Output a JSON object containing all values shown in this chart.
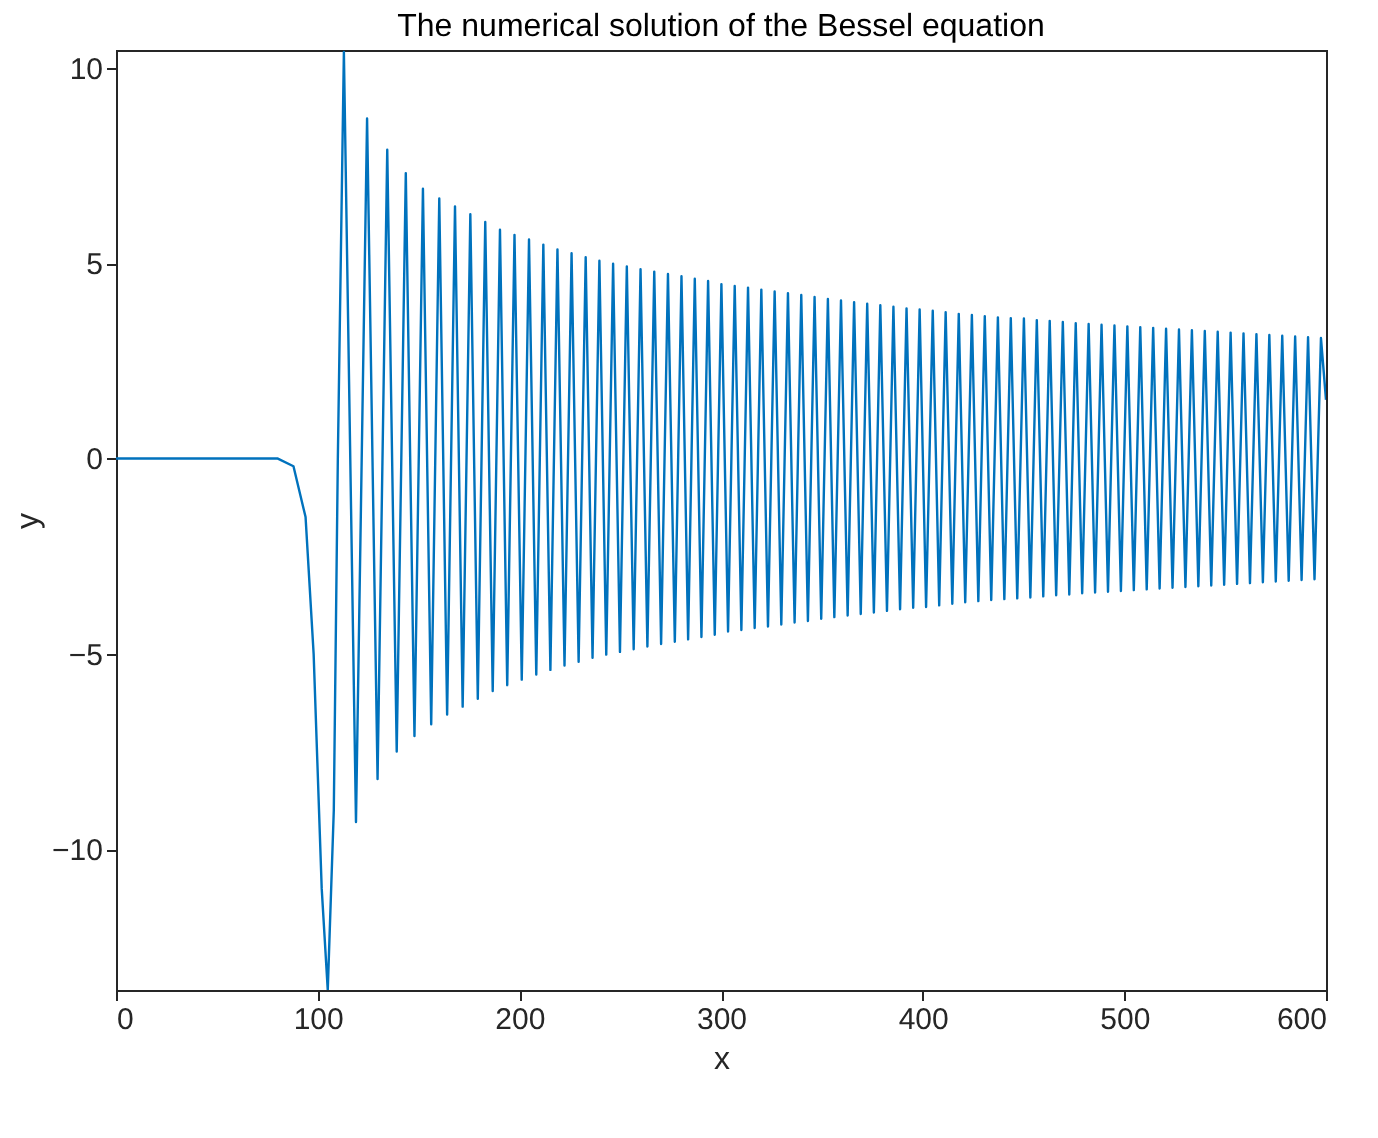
{
  "chart_data": {
    "type": "line",
    "title": "The numerical solution of the Bessel equation",
    "xlabel": "x",
    "ylabel": "y",
    "xlim": [
      0,
      600
    ],
    "ylim": [
      -13.6,
      10.45
    ],
    "xticks": [
      0,
      100,
      200,
      300,
      400,
      500,
      600
    ],
    "yticks": [
      -10,
      -5,
      0,
      5,
      10
    ],
    "grid": false,
    "series": [
      {
        "color": "#0072bd",
        "x": [
          0,
          80,
          88,
          94,
          98,
          102,
          105,
          108,
          110,
          113,
          119,
          124.5,
          129.7,
          134.5,
          139.2,
          143.7,
          148,
          152.2,
          156.3,
          160.3,
          164.2,
          168.1,
          171.9,
          175.7,
          179.4,
          183.1,
          186.8,
          190.4,
          194,
          197.6,
          201.2,
          204.8,
          208.4,
          211.9,
          215.4,
          218.9,
          222.4,
          225.9,
          229.4,
          232.9,
          236.3,
          239.7,
          243.1,
          246.5,
          249.9,
          253.3,
          256.7,
          260.1,
          263.5,
          266.9,
          270.3,
          273.7,
          277.1,
          280.4,
          283.7,
          287,
          290.3,
          293.6,
          296.9,
          300.2,
          303.5,
          306.8,
          310.1,
          313.4,
          316.7,
          320,
          323.3,
          326.6,
          329.9,
          333.2,
          336.5,
          339.8,
          343.1,
          346.4,
          349.7,
          353,
          356.2,
          359.5,
          362.8,
          366,
          369.3,
          372.5,
          375.8,
          379,
          382.3,
          385.5,
          388.8,
          392,
          395.3,
          398.5,
          401.7,
          405,
          408.2,
          411.4,
          414.7,
          417.9,
          421.1,
          424.4,
          427.6,
          430.8,
          434,
          437.3,
          440.5,
          443.7,
          446.9,
          450.2,
          453.4,
          456.6,
          459.8,
          463,
          466.2,
          469.5,
          472.7,
          475.9,
          479.1,
          482.3,
          485.5,
          488.7,
          491.9,
          495.1,
          498.3,
          501.5,
          504.7,
          507.9,
          511.1,
          514.3,
          517.5,
          520.7,
          523.9,
          527.1,
          530.3,
          533.5,
          536.7,
          539.9,
          543.1,
          546.3,
          549.5,
          552.7,
          555.9,
          559.1,
          562.3,
          565.5,
          568.7,
          571.9,
          575.1,
          578.3,
          581.5,
          584.7,
          587.9,
          591.1,
          594.3,
          597.5,
          600
        ],
        "values": [
          0,
          0,
          -0.2,
          -1.5,
          -5,
          -11,
          -13.6,
          -9,
          0,
          10.4,
          -9.3,
          8.7,
          -8.2,
          7.9,
          -7.5,
          7.3,
          -7.1,
          6.9,
          -6.8,
          6.65,
          -6.55,
          6.45,
          -6.35,
          6.25,
          -6.15,
          6.05,
          -5.95,
          5.85,
          -5.8,
          5.72,
          -5.66,
          5.6,
          -5.53,
          5.47,
          -5.41,
          5.35,
          -5.3,
          5.25,
          -5.2,
          5.15,
          -5.1,
          5.06,
          -5.02,
          4.98,
          -4.95,
          4.91,
          -4.88,
          4.84,
          -4.81,
          4.78,
          -4.75,
          4.72,
          -4.69,
          4.66,
          -4.63,
          4.6,
          -4.57,
          4.54,
          -4.51,
          4.46,
          -4.43,
          4.41,
          -4.39,
          4.37,
          -4.34,
          4.32,
          -4.3,
          4.27,
          -4.25,
          4.23,
          -4.2,
          4.18,
          -4.16,
          4.13,
          -4.1,
          4.08,
          -4.06,
          4.04,
          -4.02,
          4,
          -3.98,
          3.96,
          -3.94,
          3.92,
          -3.9,
          3.88,
          -3.86,
          3.84,
          -3.82,
          3.81,
          -3.8,
          3.78,
          -3.76,
          3.74,
          -3.72,
          3.7,
          -3.68,
          3.67,
          -3.65,
          3.64,
          -3.62,
          3.61,
          -3.6,
          3.59,
          -3.58,
          3.58,
          -3.56,
          3.54,
          -3.53,
          3.52,
          -3.5,
          3.49,
          -3.48,
          3.46,
          -3.45,
          3.44,
          -3.43,
          3.42,
          -3.41,
          3.4,
          -3.39,
          3.38,
          -3.37,
          3.36,
          -3.35,
          3.34,
          -3.33,
          3.32,
          -3.31,
          3.3,
          -3.29,
          3.28,
          -3.27,
          3.26,
          -3.25,
          3.24,
          -3.23,
          3.22,
          -3.21,
          3.2,
          -3.19,
          3.18,
          -3.17,
          3.16,
          -3.15,
          3.14,
          -3.13,
          3.12,
          -3.11,
          3.1,
          -3.09,
          3.08,
          1.5
        ]
      }
    ]
  }
}
